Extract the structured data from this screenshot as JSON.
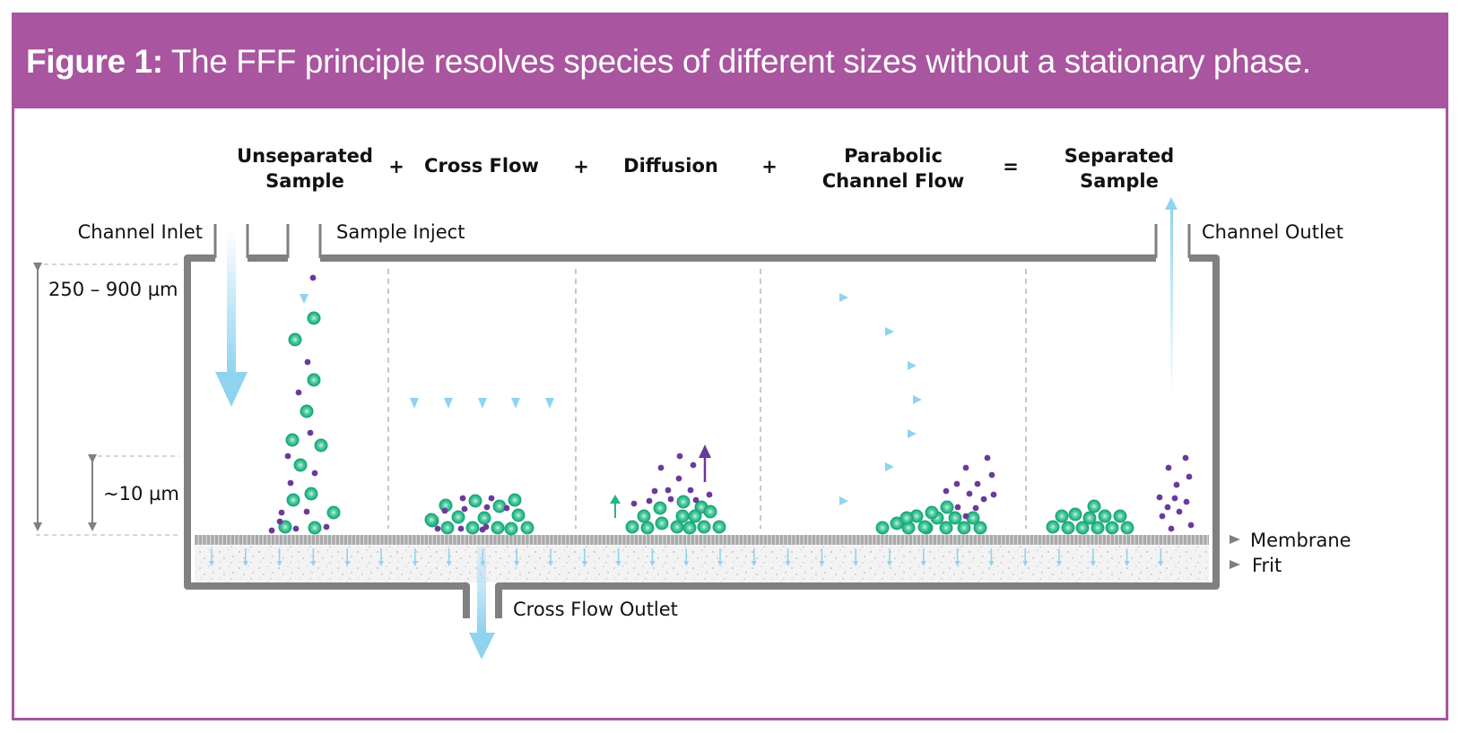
{
  "figure": {
    "label": "Figure 1:",
    "caption": "The FFF principle resolves species of different sizes without a stationary phase."
  },
  "steps": {
    "unseparated": [
      "Unseparated",
      "Sample"
    ],
    "cross_flow": "Cross Flow",
    "diffusion": "Diffusion",
    "parabolic": [
      "Parabolic",
      "Channel Flow"
    ],
    "separated": [
      "Separated",
      "Sample"
    ],
    "plus": "+",
    "equals": "="
  },
  "labels": {
    "channel_inlet": "Channel Inlet",
    "sample_inject": "Sample Inject",
    "channel_outlet": "Channel Outlet",
    "height_range": "250 – 900 µm",
    "layer_thickness": "~10 µm",
    "membrane": "Membrane",
    "frit": "Frit",
    "cross_flow_outlet": "Cross Flow Outlet"
  },
  "colors": {
    "header": "#a9559f",
    "channel_wall": "#808083",
    "flow_arrow": "#8fd3f0",
    "large_particle": "#22b58a",
    "small_particle": "#6a3a9b",
    "membrane": "#a9a9ab"
  },
  "icons": [
    "flow-arrow",
    "large-particle",
    "small-particle",
    "diffusion-arrow"
  ]
}
